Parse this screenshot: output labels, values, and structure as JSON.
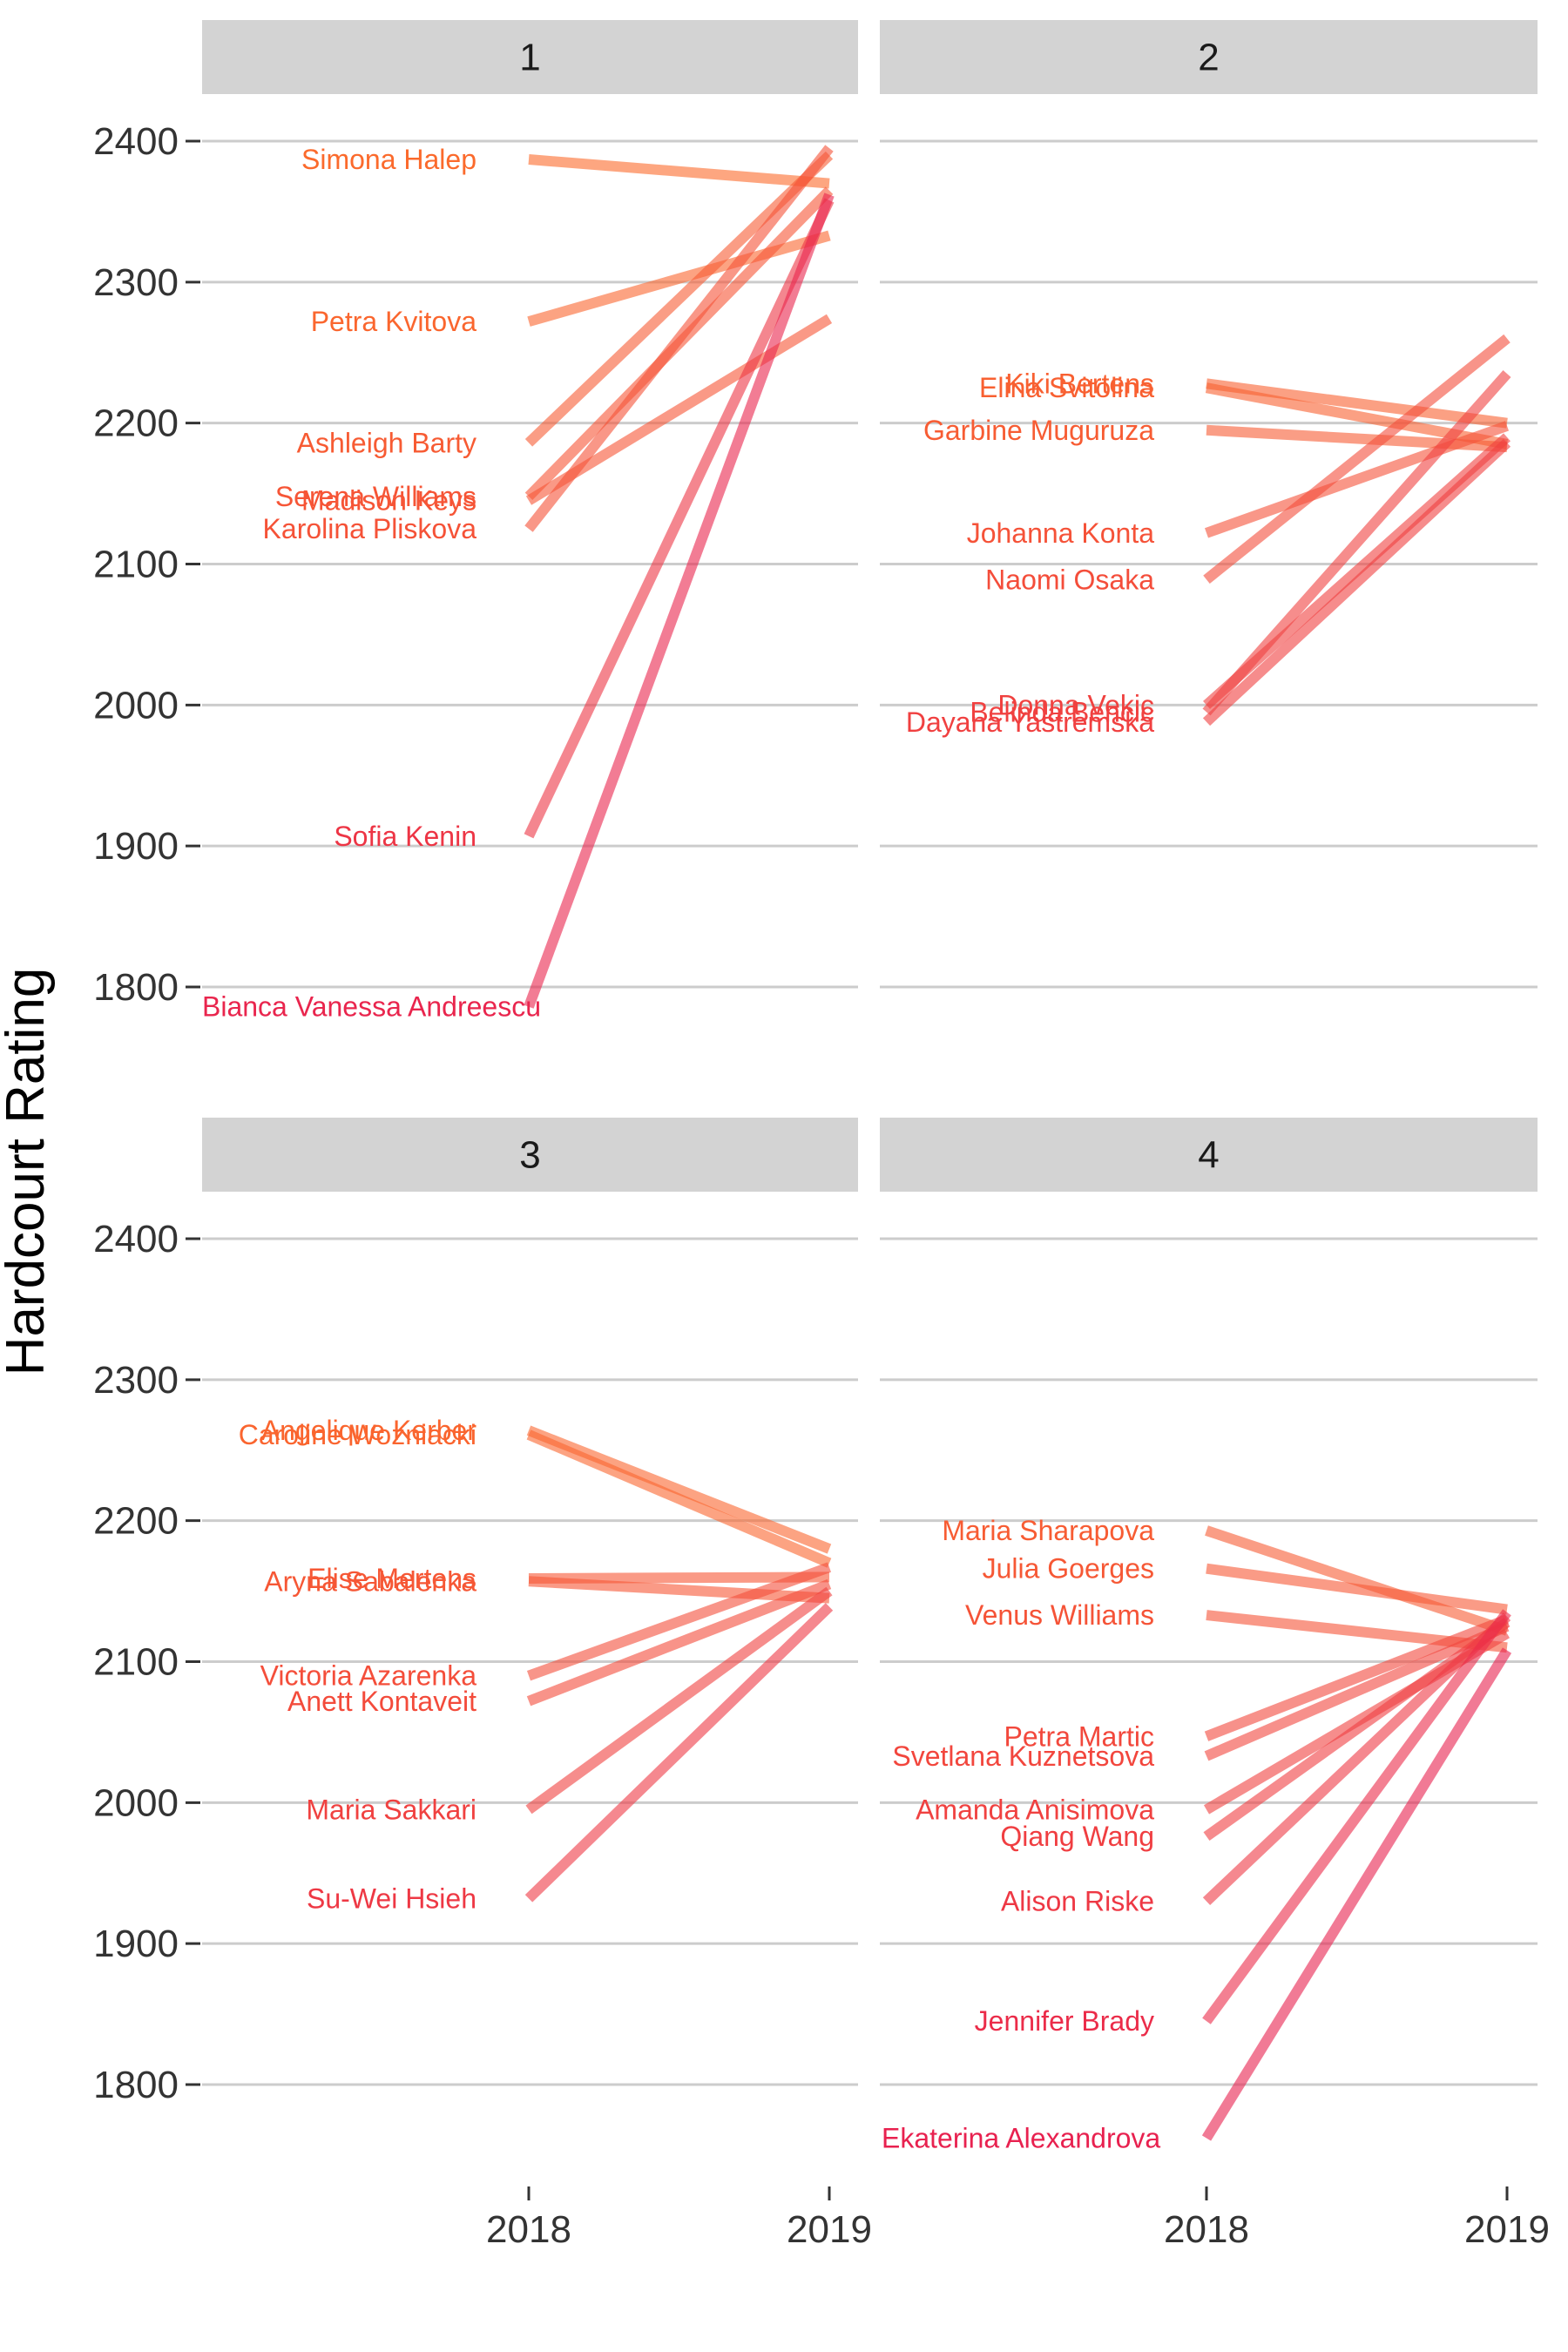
{
  "chart_data": {
    "type": "line",
    "ylabel": "Hardcourt Rating",
    "xlabel": "",
    "x": [
      "2018",
      "2019"
    ],
    "ylim": [
      1760,
      2445
    ],
    "yticks": [
      1800,
      1900,
      2000,
      2100,
      2200,
      2300,
      2400
    ],
    "grid": true,
    "legend": "none",
    "colors": {
      "low": "#e8214f",
      "high": "#fb6a2c"
    },
    "panels": [
      {
        "name": "1",
        "series": [
          {
            "name": "Simona Halep",
            "values": [
              2387,
              2370
            ]
          },
          {
            "name": "Petra Kvitova",
            "values": [
              2272,
              2333
            ]
          },
          {
            "name": "Ashleigh Barty",
            "values": [
              2186,
              2390
            ]
          },
          {
            "name": "Serena Williams",
            "values": [
              2148,
              2365
            ]
          },
          {
            "name": "Madison Keys",
            "values": [
              2145,
              2274
            ]
          },
          {
            "name": "Karolina Pliskova",
            "values": [
              2125,
              2395
            ]
          },
          {
            "name": "Sofia Kenin",
            "values": [
              1907,
              2358
            ]
          },
          {
            "name": "Bianca Vanessa Andreescu",
            "values": [
              1786,
              2362
            ]
          }
        ]
      },
      {
        "name": "2",
        "series": [
          {
            "name": "Kiki Bertens",
            "values": [
              2228,
              2200
            ]
          },
          {
            "name": "Elina Svitolina",
            "values": [
              2225,
              2185
            ]
          },
          {
            "name": "Garbine Muguruza",
            "values": [
              2195,
              2183
            ]
          },
          {
            "name": "Johanna Konta",
            "values": [
              2122,
              2198
            ]
          },
          {
            "name": "Naomi Osaka",
            "values": [
              2089,
              2260
            ]
          },
          {
            "name": "Donna Vekic",
            "values": [
              2000,
              2190
            ]
          },
          {
            "name": "Belinda Bencic",
            "values": [
              1995,
              2235
            ]
          },
          {
            "name": "Dayana Yastremska",
            "values": [
              1988,
              2186
            ]
          }
        ]
      },
      {
        "name": "3",
        "series": [
          {
            "name": "Angelique Kerber",
            "values": [
              2264,
              2180
            ]
          },
          {
            "name": "Caroline Wozniacki",
            "values": [
              2261,
              2170
            ]
          },
          {
            "name": "Elise Mertens",
            "values": [
              2159,
              2160
            ]
          },
          {
            "name": "Aryna Sabalenka",
            "values": [
              2157,
              2145
            ]
          },
          {
            "name": "Victoria Azarenka",
            "values": [
              2090,
              2167
            ]
          },
          {
            "name": "Anett Kontaveit",
            "values": [
              2072,
              2155
            ]
          },
          {
            "name": "Maria Sakkari",
            "values": [
              1995,
              2150
            ]
          },
          {
            "name": "Su-Wei Hsieh",
            "values": [
              1932,
              2139
            ]
          }
        ]
      },
      {
        "name": "4",
        "series": [
          {
            "name": "Maria Sharapova",
            "values": [
              2193,
              2122
            ]
          },
          {
            "name": "Julia Goerges",
            "values": [
              2166,
              2137
            ]
          },
          {
            "name": "Venus Williams",
            "values": [
              2133,
              2110
            ]
          },
          {
            "name": "Petra Martic",
            "values": [
              2047,
              2130
            ]
          },
          {
            "name": "Svetlana Kuznetsova",
            "values": [
              2033,
              2125
            ]
          },
          {
            "name": "Amanda Anisimova",
            "values": [
              1995,
              2120
            ]
          },
          {
            "name": "Qiang Wang",
            "values": [
              1976,
              2128
            ]
          },
          {
            "name": "Alison Riske",
            "values": [
              1930,
              2132
            ]
          },
          {
            "name": "Jennifer Brady",
            "values": [
              1845,
              2135
            ]
          },
          {
            "name": "Ekaterina Alexandrova",
            "values": [
              1762,
              2108
            ]
          }
        ]
      }
    ]
  }
}
